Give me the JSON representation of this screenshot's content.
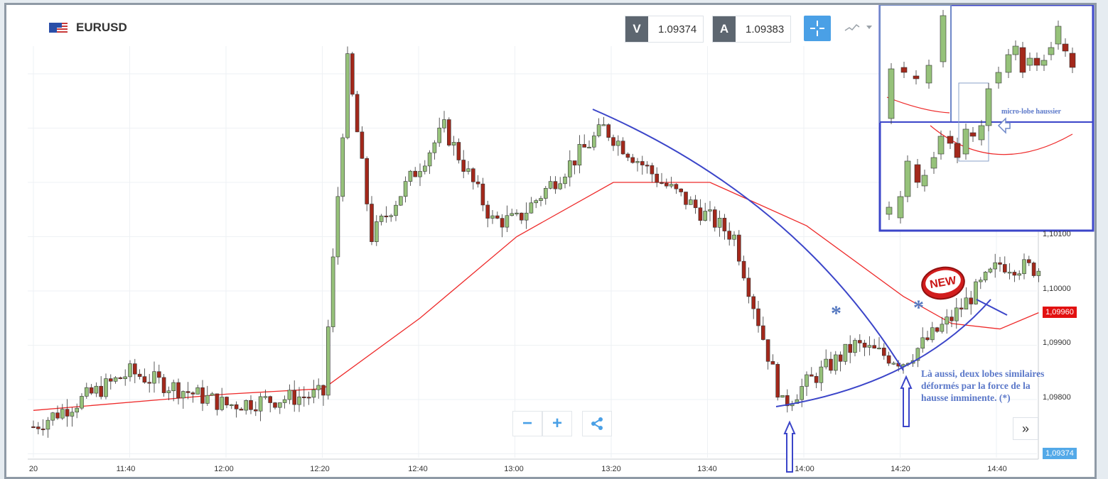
{
  "header": {
    "symbol": "EURUSD",
    "flag_icon": "eu-us-flag-icon",
    "bid_letter": "V",
    "bid_value": "1.09374",
    "ask_letter": "A",
    "ask_value": "1.09383",
    "crosshair_icon": "crosshair-icon",
    "chart_type_icon": "line-chart-icon"
  },
  "controls": {
    "zoom_out": "−",
    "zoom_in": "+",
    "share_icon": "share-icon",
    "forward": "»"
  },
  "annotations": {
    "note": "Là aussi, deux lobes similaires déformés par la force de la hausse imminente. (*)",
    "note_lines": [
      "Là aussi, deux lobes similaires",
      "déformés par la force de la",
      "hausse imminente. (*)"
    ],
    "inset_label": "micro-lobe haussier",
    "badge": "NEW",
    "star1": "*",
    "star2": "*"
  },
  "colors": {
    "up_candle": "#96c27a",
    "down_candle": "#a3281b",
    "ma_line": "#ee2a2a",
    "annotation_blue": "#3b45c9",
    "price_tag_red": "#e21010",
    "price_tag_blue": "#53a9e8"
  },
  "chart_data": {
    "type": "candlestick",
    "title": "EURUSD",
    "x_ticks": [
      "20",
      "11:40",
      "12:00",
      "12:20",
      "12:40",
      "13:00",
      "13:20",
      "13:40",
      "14:00",
      "14:20",
      "14:40"
    ],
    "y_ticks": [
      "1,09800",
      "1,09900",
      "1,10000",
      "1,10100"
    ],
    "price_tags": {
      "ma_value": "1,09960",
      "last_price": "1,09374"
    },
    "y_range": [
      1.0966,
      1.1045
    ],
    "grid": true,
    "key_points": [
      {
        "time": "11:20",
        "price": 1.0975
      },
      {
        "time": "11:40",
        "price": 1.0985
      },
      {
        "time": "12:00",
        "price": 1.0979
      },
      {
        "time": "12:20",
        "price": 1.0981
      },
      {
        "time": "12:25",
        "price": 1.1042
      },
      {
        "time": "12:30",
        "price": 1.101
      },
      {
        "time": "12:45",
        "price": 1.103
      },
      {
        "time": "12:55",
        "price": 1.1013
      },
      {
        "time": "13:00",
        "price": 1.1013
      },
      {
        "time": "13:18",
        "price": 1.103
      },
      {
        "time": "13:30",
        "price": 1.102
      },
      {
        "time": "13:45",
        "price": 1.101
      },
      {
        "time": "13:55",
        "price": 1.0979
      },
      {
        "time": "14:00",
        "price": 1.0983
      },
      {
        "time": "14:10",
        "price": 1.099
      },
      {
        "time": "14:20",
        "price": 1.0987
      },
      {
        "time": "14:30",
        "price": 1.0995
      },
      {
        "time": "14:40",
        "price": 1.1005
      },
      {
        "time": "14:48",
        "price": 1.1004
      }
    ],
    "moving_average": [
      {
        "time": "11:20",
        "price": 1.0978
      },
      {
        "time": "12:00",
        "price": 1.0981
      },
      {
        "time": "12:20",
        "price": 1.0982
      },
      {
        "time": "12:40",
        "price": 1.0995
      },
      {
        "time": "13:00",
        "price": 1.101
      },
      {
        "time": "13:20",
        "price": 1.102
      },
      {
        "time": "13:40",
        "price": 1.102
      },
      {
        "time": "14:00",
        "price": 1.1012
      },
      {
        "time": "14:20",
        "price": 1.0999
      },
      {
        "time": "14:30",
        "price": 1.0994
      },
      {
        "time": "14:40",
        "price": 1.0993
      },
      {
        "time": "14:48",
        "price": 1.0996
      }
    ]
  }
}
